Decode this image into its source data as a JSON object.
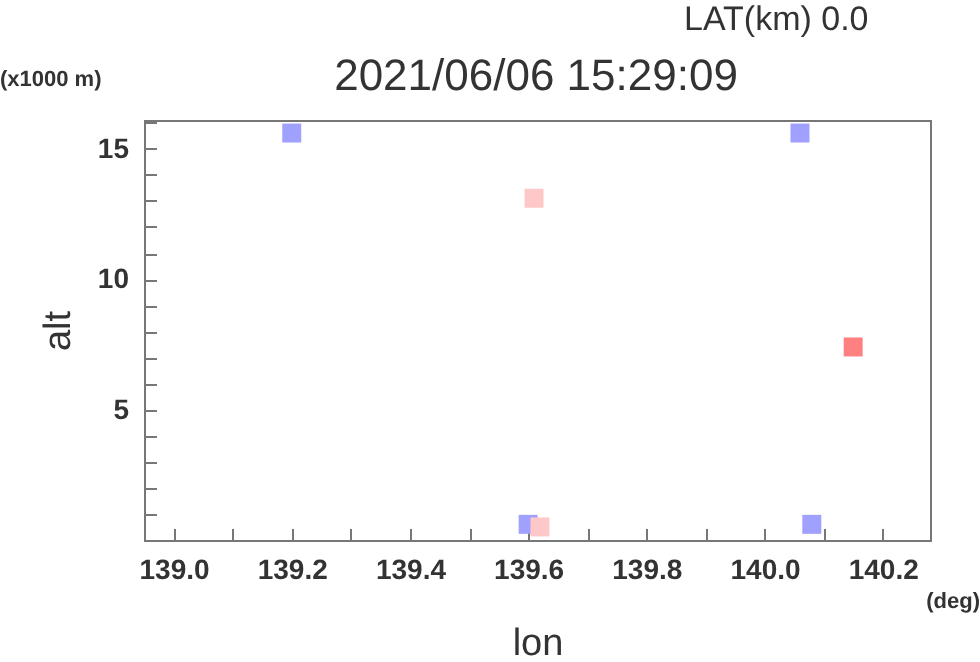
{
  "chart_data": {
    "type": "scatter",
    "title": "2021/06/06 15:29:09",
    "xlabel": "lon",
    "ylabel": "alt",
    "annotations": [
      "LAT(km) 0.0",
      "(x1000 m)",
      "(deg)"
    ],
    "x": [
      139.2,
      139.61,
      139.6,
      139.62,
      140.06,
      140.08,
      140.15
    ],
    "values": [
      15.6,
      13.1,
      0.6,
      0.5,
      15.6,
      0.6,
      7.4
    ],
    "colors": [
      "#a0a0ff",
      "#ffc8c8",
      "#a0a0ff",
      "#ffc8c8",
      "#a0a0ff",
      "#a0a0ff",
      "#ff8080"
    ],
    "marker": "square",
    "xlim": [
      138.95,
      140.28
    ],
    "xticks": [
      {
        "value": 139.1,
        "label": null
      },
      {
        "value": 139.0,
        "label": "139.0"
      },
      139.2,
      {
        "value": 139.3,
        "label": null
      },
      139.4,
      {
        "value": 139.5,
        "label": null
      },
      139.6,
      {
        "value": 139.7,
        "label": null
      },
      139.8,
      {
        "value": 139.9,
        "label": null
      },
      {
        "value": 140.0,
        "label": "140.0"
      },
      {
        "value": 140.1,
        "label": null
      },
      140.2
    ],
    "ylim": [
      0,
      16.1
    ],
    "yticks": [
      {
        "value": 1,
        "label": null
      },
      {
        "value": 2,
        "label": null
      },
      {
        "value": 3,
        "label": null
      },
      {
        "value": 4,
        "label": null
      },
      5,
      {
        "value": 6,
        "label": null
      },
      {
        "value": 7,
        "label": null
      },
      {
        "value": 8,
        "label": null
      },
      {
        "value": 9,
        "label": null
      },
      10,
      {
        "value": 11,
        "label": null
      },
      {
        "value": 12,
        "label": null
      },
      {
        "value": 13,
        "label": null
      },
      {
        "value": 14,
        "label": null
      },
      15,
      {
        "value": 16,
        "label": null
      }
    ]
  }
}
